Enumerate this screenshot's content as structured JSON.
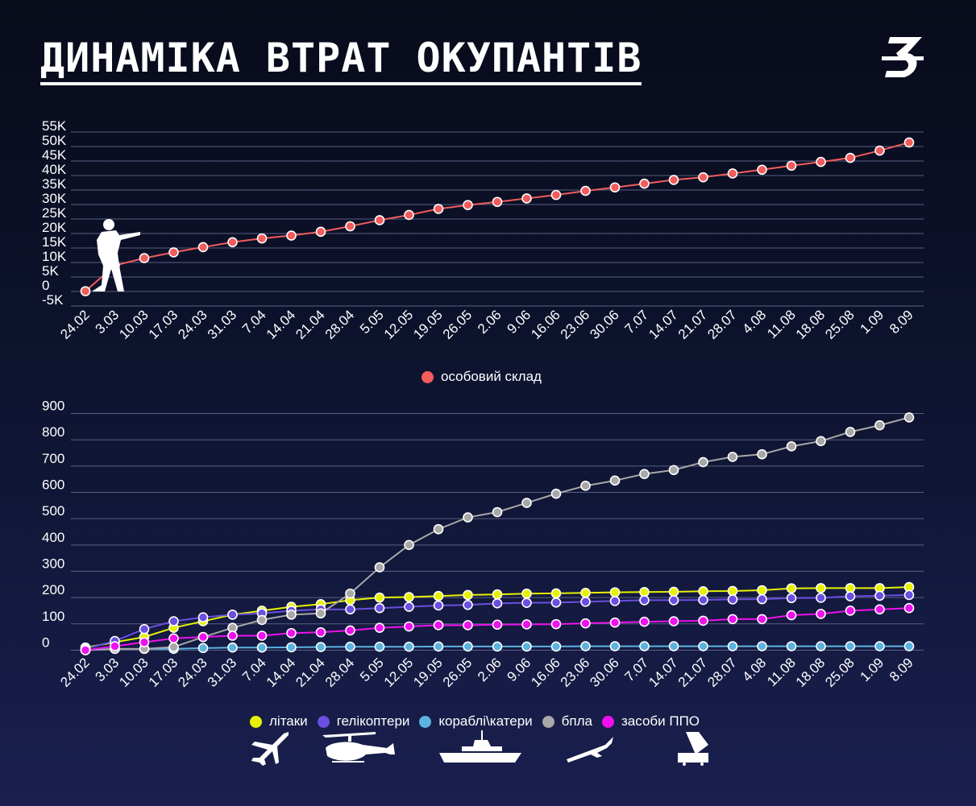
{
  "title": "ДИНАМІКА ВТРАТ ОКУПАНТІВ",
  "logo_letter": "З",
  "chart_data": [
    {
      "type": "line",
      "categories": [
        "24.02",
        "3.03",
        "10.03",
        "17.03",
        "24.03",
        "31.03",
        "7.04",
        "14.04",
        "21.04",
        "28.04",
        "5.05",
        "12.05",
        "19.05",
        "26.05",
        "2.06",
        "9.06",
        "16.06",
        "23.06",
        "30.06",
        "7.07",
        "14.07",
        "21.07",
        "28.07",
        "4.08",
        "11.08",
        "18.08",
        "25.08",
        "1.09",
        "8.09"
      ],
      "yticks": [
        -5000,
        0,
        5000,
        10000,
        15000,
        20000,
        25000,
        30000,
        35000,
        40000,
        45000,
        50000,
        55000
      ],
      "ytick_labels": [
        "-5K",
        "0",
        "5K",
        "10K",
        "15K",
        "20K",
        "25K",
        "30K",
        "35K",
        "40K",
        "45K",
        "50K",
        "55K"
      ],
      "ylim": [
        -5000,
        55000
      ],
      "series": [
        {
          "name": "особовий склад",
          "color": "#f25c5c",
          "values": [
            100,
            9000,
            11500,
            13500,
            15300,
            17000,
            18300,
            19300,
            20600,
            22500,
            24600,
            26400,
            28500,
            29800,
            30900,
            32100,
            33300,
            34700,
            35900,
            37200,
            38500,
            39400,
            40700,
            42000,
            43400,
            44700,
            46100,
            48600,
            51400
          ]
        }
      ],
      "legend_position": "bottom-center"
    },
    {
      "type": "line",
      "categories": [
        "24.02",
        "3.03",
        "10.03",
        "17.03",
        "24.03",
        "31.03",
        "7.04",
        "14.04",
        "21.04",
        "28.04",
        "5.05",
        "12.05",
        "19.05",
        "26.05",
        "2.06",
        "9.06",
        "16.06",
        "23.06",
        "30.06",
        "7.07",
        "14.07",
        "21.07",
        "28.07",
        "4.08",
        "11.08",
        "18.08",
        "25.08",
        "1.09",
        "8.09"
      ],
      "yticks": [
        0,
        100,
        200,
        300,
        400,
        500,
        600,
        700,
        800,
        900
      ],
      "ytick_labels": [
        "0",
        "100",
        "200",
        "300",
        "400",
        "500",
        "600",
        "700",
        "800",
        "900"
      ],
      "ylim": [
        -20,
        920
      ],
      "series": [
        {
          "name": "літаки",
          "color": "#e6f200",
          "values": [
            10,
            30,
            50,
            85,
            110,
            135,
            150,
            165,
            175,
            190,
            200,
            202,
            206,
            210,
            212,
            215,
            216,
            218,
            220,
            221,
            222,
            224,
            225,
            228,
            235,
            236,
            236,
            236,
            240
          ]
        },
        {
          "name": "гелікоптери",
          "color": "#6a4fe0",
          "values": [
            5,
            35,
            80,
            110,
            125,
            135,
            140,
            150,
            155,
            155,
            160,
            165,
            170,
            172,
            178,
            180,
            181,
            184,
            187,
            190,
            190,
            191,
            193,
            194,
            198,
            199,
            205,
            207,
            210
          ]
        },
        {
          "name": "кораблі\\катери",
          "color": "#5cb3e0",
          "values": [
            0,
            5,
            5,
            5,
            8,
            10,
            10,
            11,
            12,
            13,
            13,
            13,
            14,
            14,
            14,
            14,
            14,
            15,
            15,
            15,
            15,
            15,
            15,
            15,
            15,
            15,
            15,
            15,
            15
          ]
        },
        {
          "name": "бпла",
          "color": "#a8a8a8",
          "values": [
            0,
            5,
            5,
            12,
            50,
            85,
            115,
            135,
            140,
            215,
            315,
            400,
            460,
            505,
            525,
            560,
            595,
            625,
            645,
            670,
            685,
            715,
            735,
            745,
            775,
            795,
            830,
            855,
            885
          ]
        },
        {
          "name": "засоби ППО",
          "color": "#ee11ee",
          "values": [
            0,
            15,
            30,
            45,
            50,
            55,
            55,
            65,
            68,
            75,
            85,
            90,
            95,
            95,
            97,
            98,
            99,
            102,
            105,
            108,
            110,
            112,
            118,
            118,
            133,
            138,
            150,
            155,
            160
          ]
        }
      ],
      "legend_position": "bottom-center"
    }
  ],
  "icons": [
    "soldier-icon",
    "plane-icon",
    "helicopter-icon",
    "ship-icon",
    "drone-icon",
    "air-defense-icon"
  ]
}
